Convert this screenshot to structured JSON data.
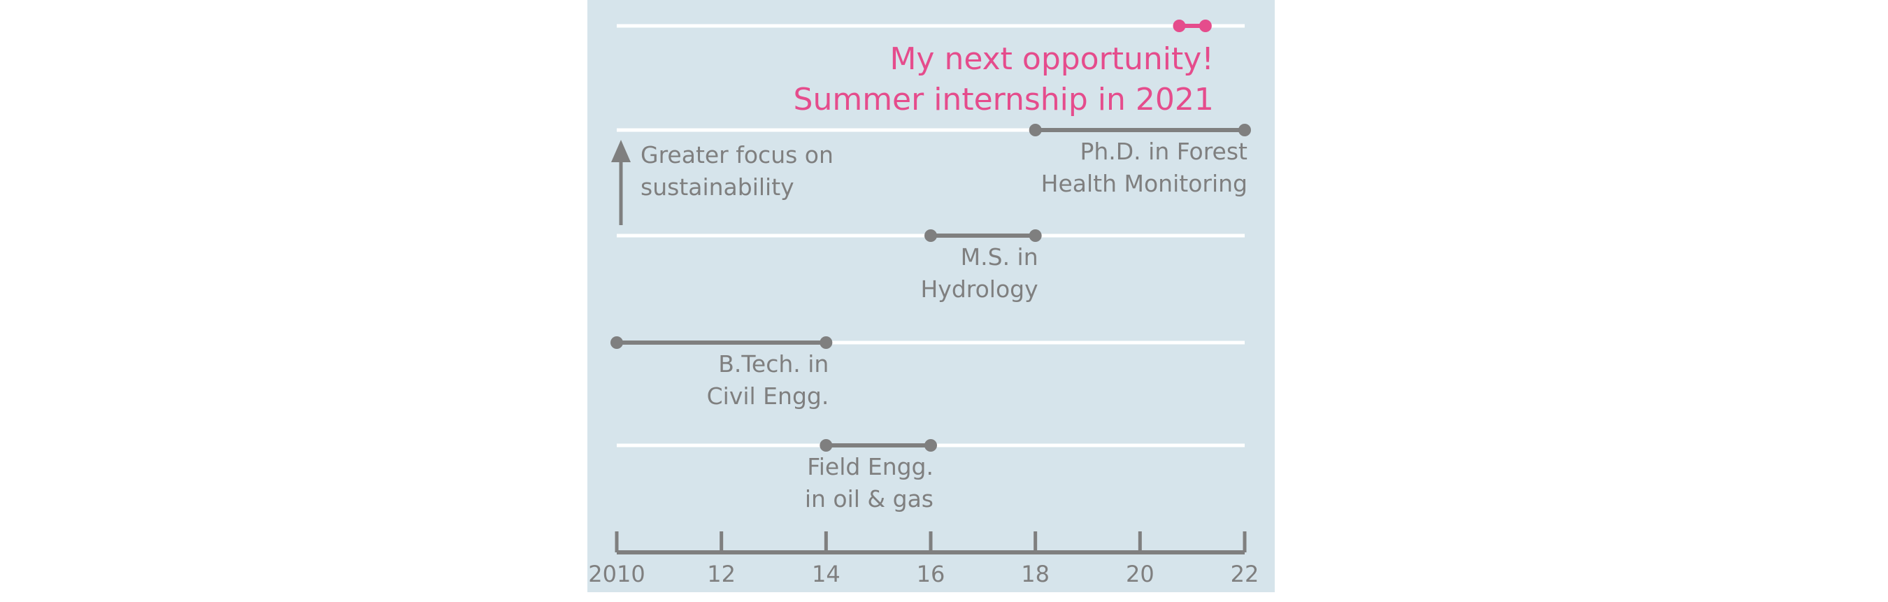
{
  "colors": {
    "background": "#d6e4eb",
    "gridline": "#ffffff",
    "primary": "#7f7f7f",
    "accent": "#e54c8c"
  },
  "chart_data": {
    "type": "timeline",
    "title": "",
    "xlabel": "",
    "ylabel": "",
    "xlim": [
      2010,
      2022
    ],
    "x_ticks": [
      2010,
      2012,
      2014,
      2016,
      2018,
      2020,
      2022
    ],
    "x_tick_labels": [
      "2010",
      "12",
      "14",
      "16",
      "18",
      "20",
      "22"
    ],
    "rows": 5,
    "grid": true,
    "segments": [
      {
        "start": 2014,
        "end": 2016,
        "row": 0,
        "label_lines": [
          "Field Engg.",
          "in oil & gas"
        ],
        "highlight": false
      },
      {
        "start": 2010,
        "end": 2014,
        "row": 1,
        "label_lines": [
          "B.Tech. in",
          "Civil Engg."
        ],
        "highlight": false
      },
      {
        "start": 2016,
        "end": 2018,
        "row": 2,
        "label_lines": [
          "M.S. in",
          "Hydrology"
        ],
        "highlight": false
      },
      {
        "start": 2018,
        "end": 2022,
        "row": 3,
        "label_lines": [
          "Ph.D. in Forest",
          "Health Monitoring"
        ],
        "highlight": false
      },
      {
        "start": 2020.75,
        "end": 2021.25,
        "row": 4,
        "label_lines": [
          "My next opportunity!",
          "Summer internship in 2021"
        ],
        "highlight": true
      }
    ],
    "annotations": [
      {
        "label_lines": [
          "Greater focus on",
          "sustainability"
        ],
        "icon": "up-arrow-icon"
      }
    ]
  }
}
